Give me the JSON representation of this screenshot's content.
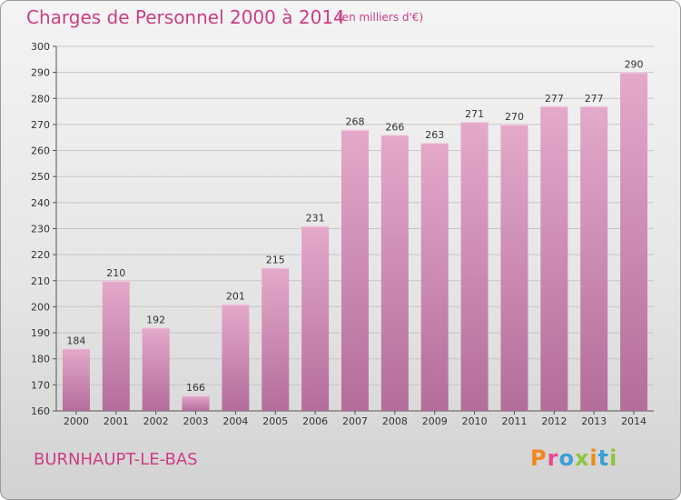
{
  "header": {
    "title": "Charges de Personnel 2000 à 2014",
    "subtitle": "(en milliers d'€)"
  },
  "footer": {
    "commune": "BURNHAUPT-LE-BAS",
    "logo_letters": [
      "P",
      "r",
      "o",
      "x",
      "i",
      "t",
      "i"
    ]
  },
  "colors": {
    "title": "#cc3e86",
    "bar_top": "#e4a9cb",
    "bar_bottom": "#b36d99",
    "logo": [
      "#f08a1c",
      "#e8478d",
      "#3aa0d8",
      "#8cc63e",
      "#f08a1c",
      "#3aa0d8",
      "#8cc63e"
    ]
  },
  "chart_data": {
    "type": "bar",
    "title": "Charges de Personnel 2000 à 2014",
    "subtitle": "(en milliers d'€)",
    "categories": [
      "2000",
      "2001",
      "2002",
      "2003",
      "2004",
      "2005",
      "2006",
      "2007",
      "2008",
      "2009",
      "2010",
      "2011",
      "2012",
      "2013",
      "2014"
    ],
    "values": [
      184,
      210,
      192,
      166,
      201,
      215,
      231,
      268,
      266,
      263,
      271,
      270,
      277,
      277,
      290
    ],
    "ylim": [
      160,
      300
    ],
    "yticks": [
      160,
      170,
      180,
      190,
      200,
      210,
      220,
      230,
      240,
      250,
      260,
      270,
      280,
      290,
      300
    ],
    "xlabel": "",
    "ylabel": "",
    "grid": true
  }
}
